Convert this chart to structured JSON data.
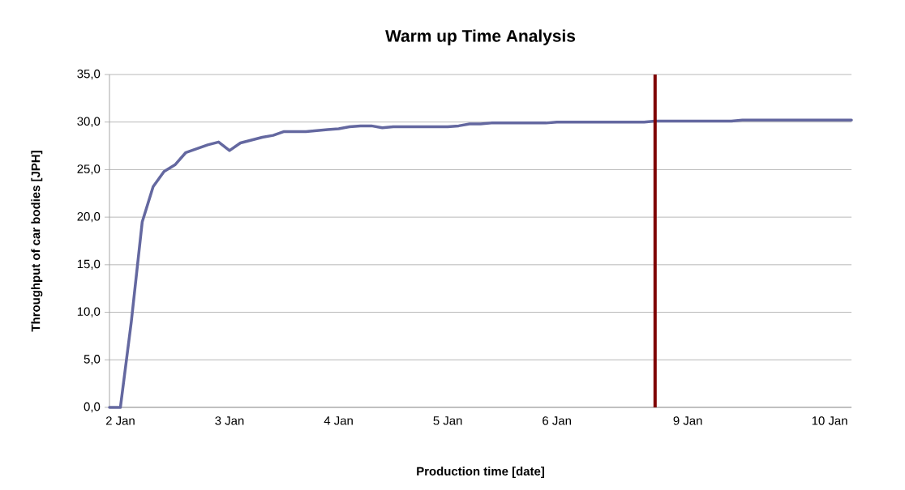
{
  "chart_data": {
    "type": "line",
    "title": "Warm up Time Analysis",
    "xlabel": "Production time [date]",
    "ylabel": "Throughput of car bodies [JPH]",
    "categories": [
      null,
      "2 Jan",
      null,
      null,
      null,
      null,
      null,
      null,
      null,
      null,
      null,
      "3 Jan",
      null,
      null,
      null,
      null,
      null,
      null,
      null,
      null,
      null,
      "4 Jan",
      null,
      null,
      null,
      null,
      null,
      null,
      null,
      null,
      null,
      "5 Jan",
      null,
      null,
      null,
      null,
      null,
      null,
      null,
      null,
      null,
      "6 Jan",
      null,
      null,
      null,
      null,
      null,
      null,
      null,
      null,
      null,
      null,
      null,
      "9 Jan",
      null,
      null,
      null,
      null,
      null,
      null,
      null,
      null,
      null,
      null,
      null,
      null,
      "10 Jan",
      null,
      null
    ],
    "series": [
      {
        "color": "#6468a0",
        "values": [
          0,
          0,
          9.0,
          19.5,
          23.2,
          24.8,
          25.5,
          26.8,
          27.2,
          27.6,
          27.9,
          27.0,
          27.8,
          28.1,
          28.4,
          28.6,
          29.0,
          29.0,
          29.0,
          29.1,
          29.2,
          29.3,
          29.5,
          29.6,
          29.6,
          29.4,
          29.5,
          29.5,
          29.5,
          29.5,
          29.5,
          29.5,
          29.6,
          29.8,
          29.8,
          29.9,
          29.9,
          29.9,
          29.9,
          29.9,
          29.9,
          30.0,
          30.0,
          30.0,
          30.0,
          30.0,
          30.0,
          30.0,
          30.0,
          30.0,
          30.1,
          30.1,
          30.1,
          30.1,
          30.1,
          30.1,
          30.1,
          30.1,
          30.2,
          30.2,
          30.2,
          30.2,
          30.2,
          30.2,
          30.2,
          30.2,
          30.2,
          30.2,
          30.2
        ]
      }
    ],
    "ylim": [
      0,
      35
    ],
    "yticks": [
      {
        "value": 0,
        "label": "0,0"
      },
      {
        "value": 5,
        "label": "5,0"
      },
      {
        "value": 10,
        "label": "10,0"
      },
      {
        "value": 15,
        "label": "15,0"
      },
      {
        "value": 20,
        "label": "20,0"
      },
      {
        "value": 25,
        "label": "25,0"
      },
      {
        "value": 30,
        "label": "30,0"
      },
      {
        "value": 35,
        "label": "35,0"
      }
    ],
    "grid": "y",
    "marker": "none",
    "line_style": "solid"
  }
}
